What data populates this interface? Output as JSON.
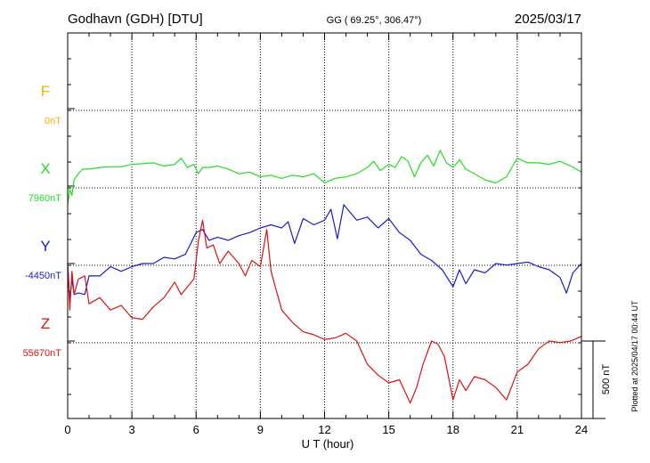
{
  "header": {
    "station": "Godhavn (GDH)  [DTU]",
    "coords": "GG ( 69.25°, 306.47°)",
    "date": "2025/03/17"
  },
  "footer": {
    "plotted": "Plotted at 2025/04/17 00:44 UT"
  },
  "colors": {
    "F": "#f0b000",
    "X": "#22dd22",
    "Y": "#1a1acc",
    "Z": "#dd1111",
    "axis": "#000000",
    "grid": "#000000"
  },
  "chart_data": {
    "type": "line",
    "xlabel": "U T (hour)",
    "xlim": [
      0,
      24
    ],
    "x_ticks": [
      "0",
      "3",
      "6",
      "9",
      "12",
      "15",
      "18",
      "21",
      "24"
    ],
    "scale_bar_label": "500 nT",
    "scale_bar_nT": 500,
    "series": [
      {
        "name": "F",
        "baseline_label": "0nT",
        "x": [],
        "y": []
      },
      {
        "name": "X",
        "baseline_label": "7960nT",
        "x": [
          0.0,
          0.1,
          0.2,
          0.3,
          0.5,
          0.7,
          1.0,
          1.5,
          2.0,
          2.5,
          3.0,
          3.5,
          4.0,
          4.5,
          5.0,
          5.3,
          5.6,
          5.9,
          6.1,
          6.3,
          6.6,
          7.0,
          7.5,
          8.0,
          8.5,
          9.0,
          9.5,
          10.0,
          10.5,
          11.0,
          11.5,
          12.0,
          12.5,
          13.0,
          13.5,
          14.0,
          14.3,
          14.6,
          15.0,
          15.3,
          15.6,
          15.9,
          16.2,
          16.5,
          16.8,
          17.1,
          17.4,
          17.7,
          18.0,
          18.3,
          18.6,
          19.0,
          19.5,
          20.0,
          20.5,
          21.0,
          21.5,
          22.0,
          22.5,
          23.0,
          23.5,
          24.0
        ],
        "y": [
          -120,
          -20,
          -60,
          40,
          80,
          110,
          110,
          120,
          125,
          125,
          140,
          145,
          150,
          130,
          140,
          180,
          120,
          140,
          80,
          120,
          120,
          130,
          110,
          80,
          90,
          60,
          70,
          50,
          70,
          60,
          80,
          20,
          50,
          60,
          80,
          120,
          160,
          100,
          140,
          120,
          190,
          160,
          60,
          150,
          200,
          130,
          230,
          150,
          120,
          170,
          110,
          80,
          40,
          20,
          60,
          180,
          150,
          150,
          140,
          160,
          130,
          90
        ]
      },
      {
        "name": "Y",
        "baseline_label": "-4450nT",
        "x": [
          0.0,
          0.1,
          0.2,
          0.3,
          0.5,
          0.8,
          1.0,
          1.5,
          2.0,
          2.5,
          3.0,
          3.5,
          4.0,
          4.5,
          5.0,
          5.5,
          6.0,
          6.3,
          6.6,
          7.0,
          7.5,
          8.0,
          8.5,
          9.0,
          9.5,
          10.0,
          10.3,
          10.6,
          11.0,
          11.5,
          12.0,
          12.3,
          12.6,
          12.9,
          13.2,
          13.5,
          14.0,
          14.5,
          15.0,
          15.5,
          16.0,
          16.5,
          17.0,
          17.5,
          18.0,
          18.3,
          18.6,
          19.0,
          19.5,
          20.0,
          20.5,
          21.0,
          21.5,
          22.0,
          22.5,
          23.0,
          23.3,
          23.6,
          24.0
        ],
        "y": [
          0,
          -240,
          -100,
          -200,
          -190,
          -200,
          -80,
          -80,
          -20,
          -50,
          -20,
          0,
          0,
          40,
          30,
          60,
          200,
          220,
          150,
          170,
          150,
          180,
          200,
          230,
          250,
          230,
          270,
          130,
          290,
          250,
          280,
          350,
          160,
          380,
          330,
          280,
          300,
          230,
          290,
          200,
          150,
          60,
          20,
          -40,
          -150,
          -40,
          -130,
          -40,
          -60,
          0,
          -10,
          0,
          10,
          -20,
          -40,
          -90,
          -190,
          -60,
          0
        ]
      },
      {
        "name": "Z",
        "baseline_label": "55670nT",
        "x": [
          0.0,
          0.1,
          0.2,
          0.3,
          0.5,
          0.8,
          1.0,
          1.5,
          2.0,
          2.5,
          3.0,
          3.5,
          4.0,
          4.5,
          5.0,
          5.3,
          5.6,
          5.9,
          6.1,
          6.3,
          6.5,
          6.8,
          7.1,
          7.5,
          8.0,
          8.3,
          8.6,
          9.0,
          9.3,
          9.5,
          9.8,
          10.0,
          10.5,
          11.0,
          11.5,
          12.0,
          12.5,
          13.0,
          13.5,
          14.0,
          14.5,
          15.0,
          15.5,
          16.0,
          16.3,
          16.6,
          17.0,
          17.3,
          17.6,
          18.0,
          18.3,
          18.6,
          19.0,
          19.5,
          20.0,
          20.5,
          21.0,
          21.5,
          22.0,
          22.5,
          23.0,
          23.5,
          24.0
        ],
        "y": [
          500,
          200,
          450,
          300,
          400,
          420,
          240,
          280,
          200,
          230,
          150,
          140,
          220,
          280,
          380,
          300,
          350,
          400,
          640,
          780,
          600,
          620,
          500,
          580,
          500,
          420,
          520,
          480,
          720,
          450,
          300,
          200,
          120,
          60,
          40,
          10,
          20,
          50,
          0,
          -150,
          -220,
          -270,
          -250,
          -400,
          -300,
          -150,
          0,
          -20,
          -100,
          -380,
          -250,
          -320,
          -230,
          -250,
          -300,
          -380,
          -200,
          -150,
          -50,
          0,
          -10,
          0,
          30
        ]
      }
    ]
  }
}
